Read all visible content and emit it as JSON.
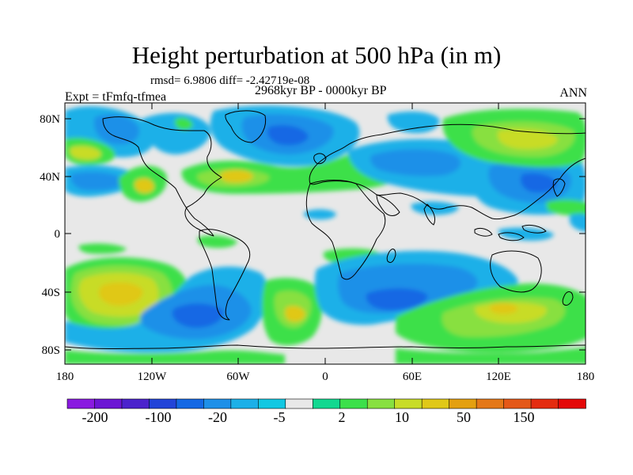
{
  "map": {
    "title": "Height perturbation at 500 hPa (in m)",
    "stats": "rmsd= 6.9806 diff= -2.42719e-08",
    "experiment": "Expt = tFmfq-tfmea",
    "period": "2968kyr BP - 0000kyr BP",
    "season": "ANN",
    "projection": "cylindrical equidistant",
    "lon_range": [
      -180,
      180
    ],
    "lat_range": [
      -90,
      90
    ],
    "lat_labels": [
      "80N",
      "40N",
      "0",
      "40S",
      "80S"
    ],
    "lon_labels": [
      "180",
      "120W",
      "60W",
      "0",
      "60E",
      "120E",
      "180"
    ],
    "background": "#e8e8e8",
    "coast_color": "#000000"
  },
  "colorbar": {
    "colors": [
      "#8a1be0",
      "#6c16d4",
      "#4b23cc",
      "#2244d8",
      "#1468e4",
      "#1e90e8",
      "#1cb0e8",
      "#12c8e2",
      "#e8e8e8",
      "#12d890",
      "#3ce04a",
      "#88e040",
      "#c8dc28",
      "#e0c818",
      "#e4a010",
      "#e47818",
      "#e45818",
      "#e42c10",
      "#e40808"
    ],
    "labels": [
      "-200",
      "-100",
      "-20",
      "-5",
      "2",
      "10",
      "50",
      "150"
    ]
  }
}
